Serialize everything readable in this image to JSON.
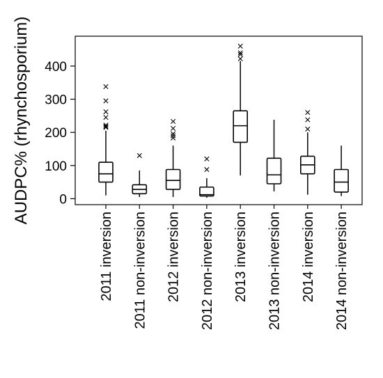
{
  "chart_data": {
    "type": "box",
    "title": "",
    "xlabel": "",
    "ylabel": "AUDPC% (rhynchosporium)",
    "ylim": [
      -18,
      490
    ],
    "yticks": [
      0,
      100,
      200,
      300,
      400
    ],
    "grid": false,
    "legend": "none",
    "categories": [
      "2011 inversion",
      "2011 non-inversion",
      "2012 inversion",
      "2012 non-inversion",
      "2013 inversion",
      "2013 non-inversion",
      "2014 inversion",
      "2014 non-inversion"
    ],
    "boxes": [
      {
        "min": 10,
        "q1": 50,
        "median": 75,
        "q3": 110,
        "max": 205,
        "outliers": [
          215,
          218,
          222,
          245,
          262,
          295,
          338
        ]
      },
      {
        "min": 5,
        "q1": 15,
        "median": 28,
        "q3": 42,
        "max": 85,
        "outliers": [
          130
        ]
      },
      {
        "min": 5,
        "q1": 28,
        "median": 55,
        "q3": 88,
        "max": 160,
        "outliers": [
          183,
          190,
          196,
          212,
          233
        ]
      },
      {
        "min": 3,
        "q1": 8,
        "median": 12,
        "q3": 35,
        "max": 62,
        "outliers": [
          88,
          120
        ]
      },
      {
        "min": 70,
        "q1": 170,
        "median": 220,
        "q3": 265,
        "max": 415,
        "outliers": [
          422,
          435,
          440,
          460
        ]
      },
      {
        "min": 22,
        "q1": 45,
        "median": 72,
        "q3": 122,
        "max": 238,
        "outliers": []
      },
      {
        "min": 12,
        "q1": 75,
        "median": 102,
        "q3": 128,
        "max": 200,
        "outliers": [
          210,
          238,
          260
        ]
      },
      {
        "min": 8,
        "q1": 20,
        "median": 50,
        "q3": 88,
        "max": 160,
        "outliers": []
      }
    ]
  }
}
